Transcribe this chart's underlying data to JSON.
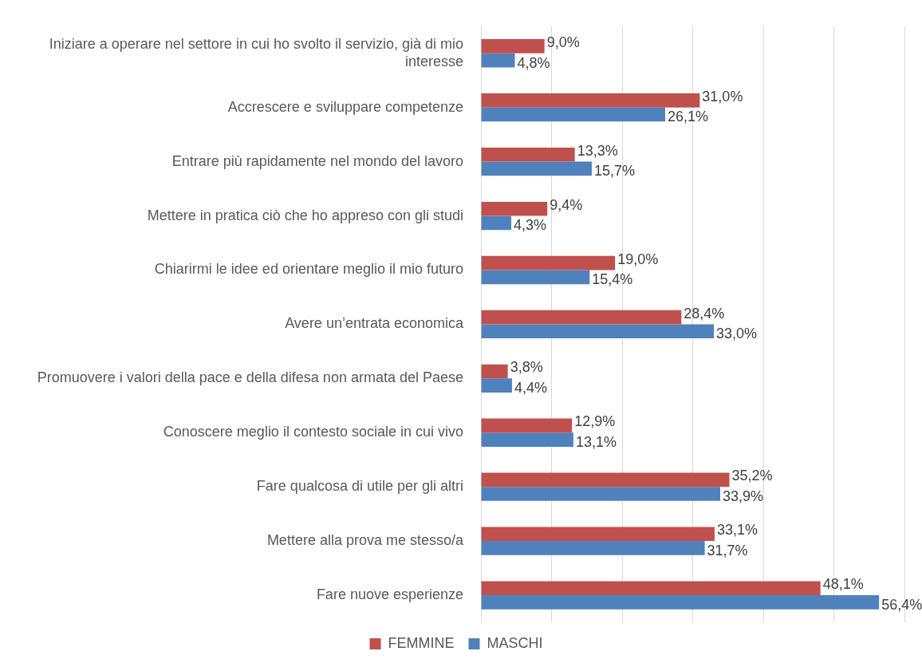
{
  "chart_data": {
    "type": "bar",
    "orientation": "horizontal",
    "categories": [
      "Iniziare a operare nel settore in cui ho svolto il servizio, già di mio interesse",
      "Accrescere e sviluppare competenze",
      "Entrare più rapidamente nel mondo del lavoro",
      "Mettere in pratica ciò che ho appreso con gli studi",
      "Chiarirmi le idee ed orientare meglio il mio futuro",
      "Avere un’entrata economica",
      "Promuovere i valori della pace e della difesa non armata del Paese",
      "Conoscere meglio il contesto sociale in cui vivo",
      "Fare qualcosa di utile per gli altri",
      "Mettere alla prova me stesso/a",
      "Fare nuove esperienze"
    ],
    "series": [
      {
        "name": "FEMMINE",
        "color": "#c0504d",
        "values": [
          9.0,
          31.0,
          13.3,
          9.4,
          19.0,
          28.4,
          3.8,
          12.9,
          35.2,
          33.1,
          48.1
        ],
        "value_labels": [
          "9,0%",
          "31,0%",
          "13,3%",
          "9,4%",
          "19,0%",
          "28,4%",
          "3,8%",
          "12,9%",
          "35,2%",
          "33,1%",
          "48,1%"
        ]
      },
      {
        "name": "MASCHI",
        "color": "#4f81bd",
        "values": [
          4.8,
          26.1,
          15.7,
          4.3,
          15.4,
          33.0,
          4.4,
          13.1,
          33.9,
          31.7,
          56.4
        ],
        "value_labels": [
          "4,8%",
          "26,1%",
          "15,7%",
          "4,3%",
          "15,4%",
          "33,0%",
          "4,4%",
          "13,1%",
          "33,9%",
          "31,7%",
          "56,4%"
        ]
      }
    ],
    "xlim": [
      0,
      60
    ],
    "xticks": [
      {
        "value": 0,
        "label": null
      },
      {
        "value": 10,
        "label": null
      },
      {
        "value": 20,
        "label": null
      },
      {
        "value": 30,
        "label": null
      },
      {
        "value": 40,
        "label": null
      },
      {
        "value": 50,
        "label": null
      },
      {
        "value": 60,
        "label": null
      }
    ],
    "grid": "x",
    "legend": "bottom",
    "tick_labels": "y"
  }
}
